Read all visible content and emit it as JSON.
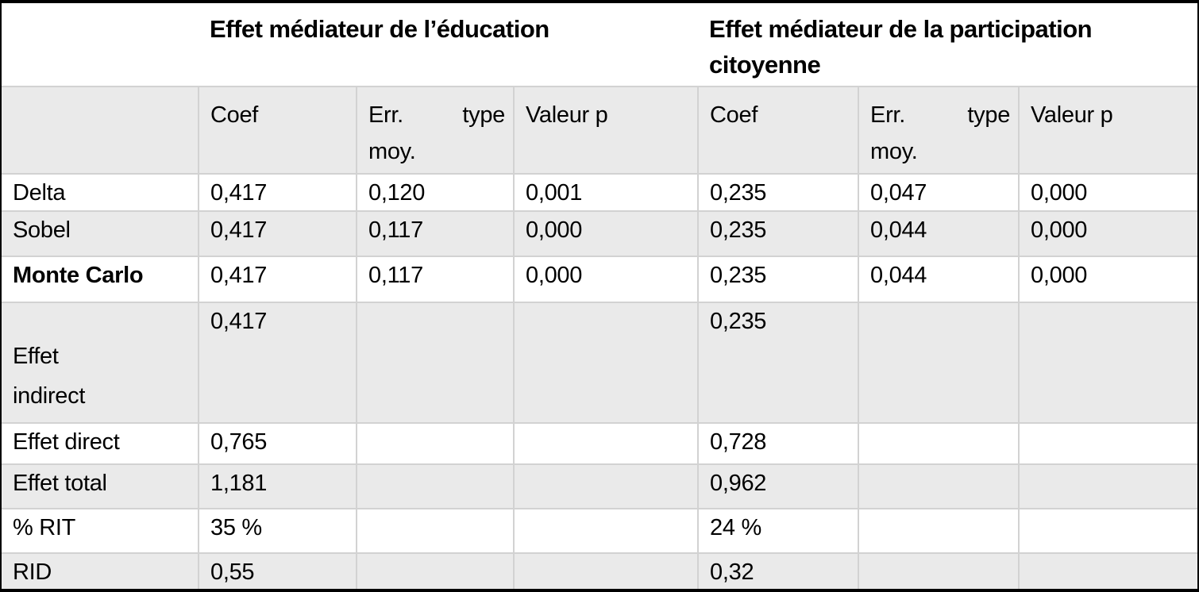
{
  "table": {
    "group_headers": [
      {
        "lines": [
          "Effet médiateur de l’éducation"
        ]
      },
      {
        "lines": [
          "Effet médiateur de la participation",
          "citoyenne"
        ]
      }
    ],
    "column_headers": [
      {
        "lines": [
          "Coef"
        ]
      },
      {
        "lines": [
          "Err. type",
          "moy."
        ],
        "justify_first_line": true
      },
      {
        "lines": [
          "Valeur p"
        ]
      },
      {
        "lines": [
          "Coef"
        ]
      },
      {
        "lines": [
          "Err. type",
          "moy."
        ],
        "justify_first_line": true
      },
      {
        "lines": [
          "Valeur p"
        ]
      }
    ],
    "rows": [
      {
        "label": "Delta",
        "bold": false,
        "tall": false,
        "values": [
          "0,417",
          "0,120",
          "0,001",
          "0,235",
          "0,047",
          "0,000"
        ]
      },
      {
        "label": "Sobel",
        "bold": false,
        "tall": false,
        "values": [
          "0,417",
          "0,117",
          "0,000",
          "0,235",
          "0,044",
          "0,000"
        ]
      },
      {
        "label": "Monte Carlo",
        "bold": true,
        "tall": false,
        "values": [
          "0,417",
          "0,117",
          "0,000",
          "0,235",
          "0,044",
          "0,000"
        ]
      },
      {
        "label": "Effet indirect",
        "bold": false,
        "tall": true,
        "values": [
          "0,417",
          "",
          "",
          "0,235",
          "",
          ""
        ]
      },
      {
        "label": "Effet direct",
        "bold": false,
        "tall": false,
        "values": [
          "0,765",
          "",
          "",
          "0,728",
          "",
          ""
        ]
      },
      {
        "label": "Effet total",
        "bold": false,
        "tall": false,
        "values": [
          "1,181",
          "",
          "",
          "0,962",
          "",
          ""
        ]
      },
      {
        "label": "% RIT",
        "bold": false,
        "tall": false,
        "values": [
          "35 %",
          "",
          "",
          "24 %",
          "",
          ""
        ]
      },
      {
        "label": "RID",
        "bold": false,
        "tall": false,
        "values": [
          "0,55",
          "",
          "",
          "0,32",
          "",
          ""
        ]
      }
    ]
  },
  "colors": {
    "row_shade": "#eaeaea",
    "grid_line": "#d2d2d2",
    "frame": "#000000",
    "text": "#000000",
    "background": "#ffffff"
  }
}
